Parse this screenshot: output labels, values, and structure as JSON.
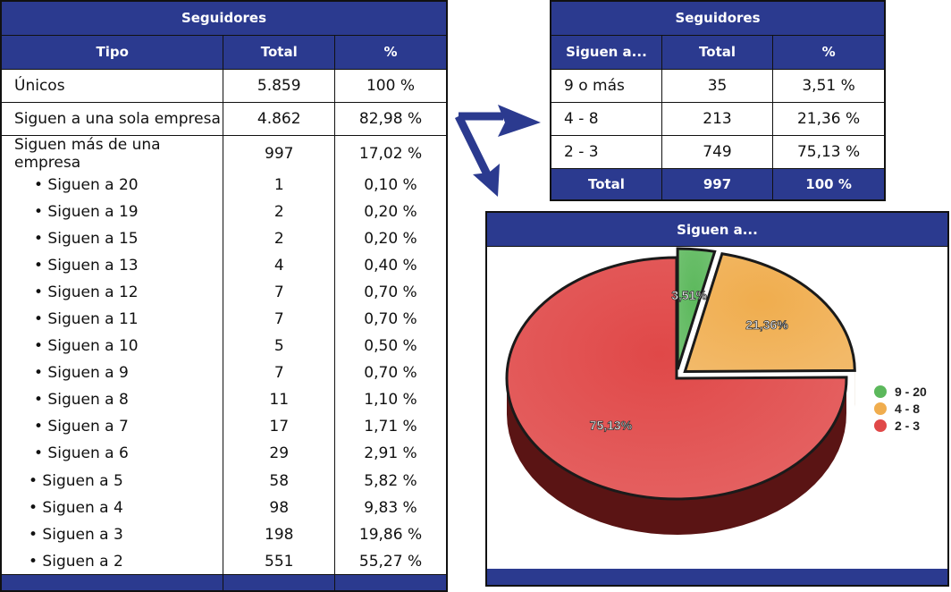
{
  "left_table": {
    "title": "Seguidores",
    "headers": [
      "Tipo",
      "Total",
      "%"
    ],
    "main_rows": [
      {
        "label": "Únicos",
        "total": "5.859",
        "pct": "100 %"
      },
      {
        "label": "Siguen a una sola empresa",
        "total": "4.862",
        "pct": "82,98 %"
      }
    ],
    "group_row": {
      "label": "Siguen más de una empresa",
      "total": "997",
      "pct": "17,02 %"
    },
    "sub_rows": [
      {
        "label": "• Siguen a 20",
        "total": "1",
        "pct": "0,10 %"
      },
      {
        "label": "• Siguen a 19",
        "total": "2",
        "pct": "0,20 %"
      },
      {
        "label": "• Siguen a 15",
        "total": "2",
        "pct": "0,20 %"
      },
      {
        "label": "• Siguen a 13",
        "total": "4",
        "pct": "0,40 %"
      },
      {
        "label": "• Siguen a 12",
        "total": "7",
        "pct": "0,70 %"
      },
      {
        "label": "• Siguen a 11",
        "total": "7",
        "pct": "0,70 %"
      },
      {
        "label": "• Siguen a 10",
        "total": "5",
        "pct": "0,50 %"
      },
      {
        "label": "• Siguen a 9",
        "total": "7",
        "pct": "0,70 %"
      },
      {
        "label": "• Siguen a 8",
        "total": "11",
        "pct": "1,10 %"
      },
      {
        "label": "• Siguen a 7",
        "total": "17",
        "pct": "1,71 %"
      },
      {
        "label": "• Siguen a 6",
        "total": "29",
        "pct": "2,91 %"
      },
      {
        "label": "• Siguen a 5",
        "total": "58",
        "pct": "5,82 %"
      },
      {
        "label": "• Siguen a 4",
        "total": "98",
        "pct": "9,83 %"
      },
      {
        "label": "• Siguen a 3",
        "total": "198",
        "pct": "19,86 %"
      },
      {
        "label": "• Siguen a 2",
        "total": "551",
        "pct": "55,27 %"
      }
    ]
  },
  "right_table": {
    "title": "Seguidores",
    "headers": [
      "Siguen a...",
      "Total",
      "%"
    ],
    "rows": [
      {
        "label": "9 o más",
        "total": "35",
        "pct": "3,51 %"
      },
      {
        "label": "4 - 8",
        "total": "213",
        "pct": "21,36 %"
      },
      {
        "label": "2 - 3",
        "total": "749",
        "pct": "75,13 %"
      }
    ],
    "total_row": {
      "label": "Total",
      "total": "997",
      "pct": "100 %"
    }
  },
  "colors": {
    "header_blue": "#2b3a8f",
    "green": "#5cb85c",
    "orange": "#f0ad4e",
    "red": "#e04848"
  },
  "chart_data": {
    "type": "pie",
    "title": "Siguen a...",
    "categories": [
      "9 - 20",
      "4 - 8",
      "2 - 3"
    ],
    "values": [
      3.51,
      21.36,
      75.13
    ],
    "value_labels": [
      "3,51%",
      "21,36%",
      "75,13%"
    ],
    "legend_position": "right"
  }
}
